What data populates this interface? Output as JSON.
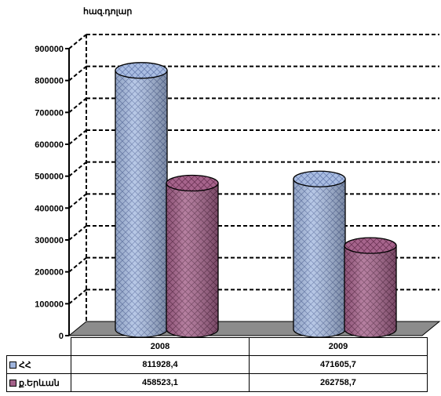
{
  "chart_data": {
    "type": "bar",
    "unit_label": "հազ.դոլար",
    "categories": [
      "2008",
      "2009"
    ],
    "series": [
      {
        "name": "ՀՀ",
        "values": [
          811928.4,
          471605.7
        ],
        "value_labels": [
          "811928,4",
          "471605,7"
        ],
        "color": "#9fb4dc"
      },
      {
        "name": "ք.Երևան",
        "values": [
          458523.1,
          262758.7
        ],
        "value_labels": [
          "458523,1",
          "262758,7"
        ],
        "color": "#a4628a"
      }
    ],
    "y_ticks": [
      "0",
      "100000",
      "200000",
      "300000",
      "400000",
      "500000",
      "600000",
      "700000",
      "800000",
      "900000"
    ],
    "ylim": [
      0,
      900000
    ],
    "grid": "dashed horizontal",
    "legend": "data table below chart"
  }
}
